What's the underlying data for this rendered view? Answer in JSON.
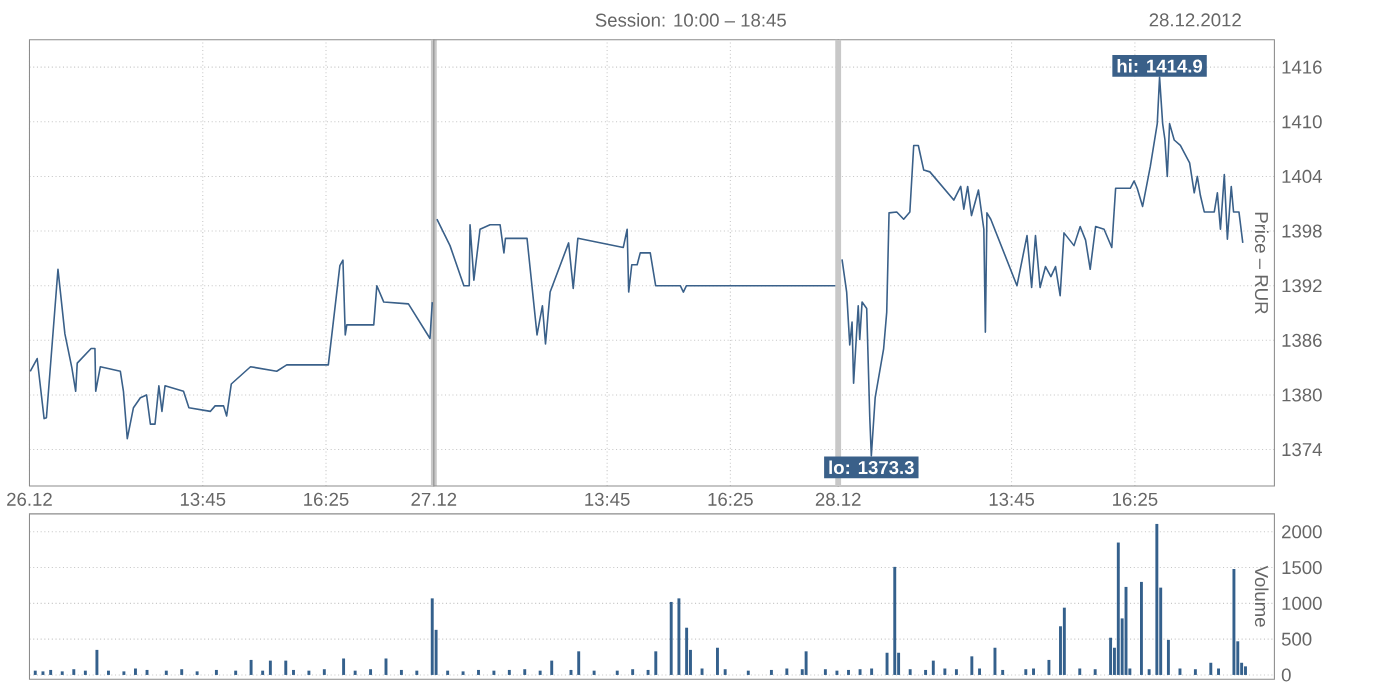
{
  "chart_data": [
    {
      "type": "line",
      "color": "#3a6089",
      "grid": true,
      "tick_labels": "x",
      "x": [
        "2012-12-26T10:01",
        "2012-12-26T10:10",
        "2012-12-26T10:19",
        "2012-12-26T10:22",
        "2012-12-26T10:37",
        "2012-12-26T10:46",
        "2012-12-26T10:55",
        "2012-12-26T11:00",
        "2012-12-26T11:02",
        "2012-12-26T11:20",
        "2012-12-26T11:25",
        "2012-12-26T11:26",
        "2012-12-26T11:32",
        "2012-12-26T11:58",
        "2012-12-26T12:02",
        "2012-12-26T12:07",
        "2012-12-26T12:15",
        "2012-12-26T12:24",
        "2012-12-26T12:32",
        "2012-12-26T12:37",
        "2012-12-26T12:43",
        "2012-12-26T12:48",
        "2012-12-26T12:52",
        "2012-12-26T12:56",
        "2012-12-26T13:20",
        "2012-12-26T13:27",
        "2012-12-26T13:55",
        "2012-12-26T14:01",
        "2012-12-26T14:12",
        "2012-12-26T14:16",
        "2012-12-26T14:22",
        "2012-12-26T14:47",
        "2012-12-26T15:21",
        "2012-12-26T15:34",
        "2012-12-26T16:28",
        "2012-12-26T16:43",
        "2012-12-26T16:47",
        "2012-12-26T16:50",
        "2012-12-26T16:52",
        "2012-12-26T17:27",
        "2012-12-26T17:31",
        "2012-12-26T17:40",
        "2012-12-26T18:12",
        "2012-12-26T18:40",
        "2012-12-26T18:43"
      ],
      "values": [
        1382.6,
        1384.0,
        1377.4,
        1377.5,
        1393.8,
        1386.7,
        1383.0,
        1380.4,
        1383.5,
        1385.1,
        1385.1,
        1380.4,
        1383.1,
        1382.6,
        1380.4,
        1375.2,
        1378.6,
        1379.7,
        1380.0,
        1376.8,
        1376.8,
        1381.0,
        1378.2,
        1381.0,
        1380.4,
        1378.6,
        1378.2,
        1378.8,
        1378.8,
        1377.7,
        1381.2,
        1383.1,
        1382.6,
        1383.3,
        1383.3,
        1394.2,
        1394.8,
        1386.6,
        1387.7,
        1387.7,
        1392.0,
        1390.2,
        1390.0,
        1386.2,
        1390.2
      ],
      "xlim": [
        "2012-12-26T10:00",
        "2012-12-26T18:45"
      ],
      "ylim": [
        1370,
        1419
      ],
      "yticks": [
        1374,
        1380,
        1386,
        1392,
        1398,
        1404,
        1410,
        1416
      ],
      "xticks": [
        {
          "value": "2012-12-26T10:00",
          "label": "26.12"
        },
        {
          "value": "2012-12-26T13:45",
          "label": "13:45"
        },
        {
          "value": "2012-12-26T16:25",
          "label": "16:25"
        }
      ],
      "ref_lines": [
        {
          "axis": "x",
          "value": "2012-12-26T18:45",
          "color": "#c8c8c8"
        }
      ]
    },
    {
      "type": "line",
      "title": "Session: 10:00 – 18:45",
      "color": "#3a6089",
      "grid": true,
      "tick_labels": "x",
      "x": [
        "2012-12-27T10:04",
        "2012-12-27T10:21",
        "2012-12-27T10:39",
        "2012-12-27T10:46",
        "2012-12-27T10:47",
        "2012-12-27T10:52",
        "2012-12-27T11:00",
        "2012-12-27T11:13",
        "2012-12-27T11:26",
        "2012-12-27T11:31",
        "2012-12-27T11:33",
        "2012-12-27T12:01",
        "2012-12-27T12:14",
        "2012-12-27T12:21",
        "2012-12-27T12:25",
        "2012-12-27T12:31",
        "2012-12-27T12:55",
        "2012-12-27T13:01",
        "2012-12-27T13:07",
        "2012-12-27T14:06",
        "2012-12-27T14:11",
        "2012-12-27T14:13",
        "2012-12-27T14:17",
        "2012-12-27T14:24",
        "2012-12-27T14:28",
        "2012-12-27T14:41",
        "2012-12-27T14:48",
        "2012-12-27T15:20",
        "2012-12-27T15:24",
        "2012-12-27T15:28",
        "2012-12-27T16:25",
        "2012-12-27T18:43"
      ],
      "values": [
        1399.3,
        1396.4,
        1392.0,
        1392.0,
        1398.7,
        1392.6,
        1398.2,
        1398.7,
        1398.7,
        1395.6,
        1397.2,
        1397.2,
        1386.6,
        1389.8,
        1385.6,
        1391.3,
        1396.7,
        1391.7,
        1397.2,
        1396.2,
        1398.2,
        1391.3,
        1394.3,
        1394.3,
        1395.6,
        1395.6,
        1392.0,
        1392.0,
        1391.3,
        1392.0,
        1392.0,
        1392.0
      ],
      "xlim": [
        "2012-12-27T10:00",
        "2012-12-27T18:45"
      ],
      "ylim": [
        1370,
        1419
      ],
      "yticks": [
        1374,
        1380,
        1386,
        1392,
        1398,
        1404,
        1410,
        1416
      ],
      "xticks": [
        {
          "value": "2012-12-27T10:00",
          "label": "27.12"
        },
        {
          "value": "2012-12-27T13:45",
          "label": "13:45"
        },
        {
          "value": "2012-12-27T16:25",
          "label": "16:25"
        }
      ]
    },
    {
      "type": "line",
      "subtitle": "28.12.2012",
      "ylabel": "Price – RUR",
      "color": "#3a6089",
      "grid": true,
      "x": [
        "2012-12-28T10:05",
        "2012-12-28T10:11",
        "2012-12-28T10:15",
        "2012-12-28T10:18",
        "2012-12-28T10:20",
        "2012-12-28T10:26",
        "2012-12-28T10:28",
        "2012-12-28T10:31",
        "2012-12-28T10:37",
        "2012-12-28T10:41",
        "2012-12-28T10:43",
        "2012-12-28T10:48",
        "2012-12-28T10:59",
        "2012-12-28T11:03",
        "2012-12-28T11:06",
        "2012-12-28T11:16",
        "2012-12-28T11:25",
        "2012-12-28T11:33",
        "2012-12-28T11:38",
        "2012-12-28T11:44",
        "2012-12-28T11:51",
        "2012-12-28T11:59",
        "2012-12-28T12:30",
        "2012-12-28T12:39",
        "2012-12-28T12:43",
        "2012-12-28T12:48",
        "2012-12-28T12:53",
        "2012-12-28T13:02",
        "2012-12-28T13:09",
        "2012-12-28T13:11",
        "2012-12-28T13:13",
        "2012-12-28T13:18",
        "2012-12-28T13:52",
        "2012-12-28T14:05",
        "2012-12-28T14:11",
        "2012-12-28T14:16",
        "2012-12-28T14:22",
        "2012-12-28T14:29",
        "2012-12-28T14:36",
        "2012-12-28T14:42",
        "2012-12-28T14:48",
        "2012-12-28T14:53",
        "2012-12-28T15:06",
        "2012-12-28T15:14",
        "2012-12-28T15:21",
        "2012-12-28T15:27",
        "2012-12-28T15:34",
        "2012-12-28T15:45",
        "2012-12-28T15:55",
        "2012-12-28T16:00",
        "2012-12-28T16:19",
        "2012-12-28T16:24",
        "2012-12-28T16:28",
        "2012-12-28T16:35",
        "2012-12-28T16:45",
        "2012-12-28T16:54",
        "2012-12-28T16:57",
        "2012-12-28T17:01",
        "2012-12-28T17:04",
        "2012-12-28T17:07",
        "2012-12-28T17:10",
        "2012-12-28T17:16",
        "2012-12-28T17:24",
        "2012-12-28T17:36",
        "2012-12-28T17:42",
        "2012-12-28T17:46",
        "2012-12-28T17:50",
        "2012-12-28T17:55",
        "2012-12-28T18:08",
        "2012-12-28T18:12",
        "2012-12-28T18:16",
        "2012-12-28T18:21",
        "2012-12-28T18:25",
        "2012-12-28T18:30",
        "2012-12-28T18:33",
        "2012-12-28T18:40",
        "2012-12-28T18:45"
      ],
      "values": [
        1394.9,
        1391.3,
        1385.5,
        1388.0,
        1381.3,
        1389.8,
        1386.1,
        1390.2,
        1389.5,
        1377.5,
        1373.3,
        1379.7,
        1385.1,
        1389.1,
        1400.0,
        1400.1,
        1399.3,
        1400.1,
        1407.4,
        1407.4,
        1404.7,
        1404.5,
        1401.4,
        1402.9,
        1400.4,
        1402.9,
        1399.7,
        1402.5,
        1398.2,
        1386.9,
        1400.0,
        1399.3,
        1392.0,
        1397.5,
        1391.8,
        1397.5,
        1391.8,
        1394.1,
        1393.0,
        1394.1,
        1390.9,
        1397.8,
        1396.4,
        1398.5,
        1397.0,
        1393.8,
        1398.5,
        1398.2,
        1396.2,
        1402.7,
        1402.7,
        1403.5,
        1402.7,
        1400.7,
        1405.1,
        1409.8,
        1414.9,
        1409.8,
        1408.0,
        1404.0,
        1409.8,
        1408.0,
        1407.4,
        1405.5,
        1402.2,
        1404.0,
        1401.9,
        1400.1,
        1400.1,
        1402.2,
        1398.2,
        1404.2,
        1397.1,
        1402.9,
        1400.1,
        1400.1,
        1396.7
      ],
      "xlim": [
        "2012-12-28T10:00",
        "2012-12-28T19:26"
      ],
      "ylim": [
        1370,
        1419
      ],
      "yticks": [
        1374,
        1380,
        1386,
        1392,
        1398,
        1404,
        1410,
        1416
      ],
      "xticks": [
        {
          "value": "2012-12-28T10:00",
          "label": "28.12"
        },
        {
          "value": "2012-12-28T13:45",
          "label": "13:45"
        },
        {
          "value": "2012-12-28T16:25",
          "label": "16:25"
        }
      ],
      "ref_lines": [
        {
          "axis": "x",
          "value": "2012-12-28T10:00",
          "color": "#c8c8c8"
        }
      ],
      "annotations": [
        {
          "text": "hi: 1414.9",
          "x": "2012-12-28T16:57",
          "y": 1414.9
        },
        {
          "text": "lo: 1373.3",
          "x": "2012-12-28T10:43",
          "y": 1373.3
        }
      ]
    },
    {
      "type": "bar",
      "ylabel": "Volume",
      "color": "#34608c",
      "grid": "y",
      "tick_labels": "y",
      "categories": [
        null,
        null,
        null,
        null,
        null,
        null,
        null,
        null,
        null,
        null,
        null,
        null,
        null,
        null,
        null,
        null,
        null,
        null,
        null,
        null,
        null,
        null,
        null,
        null,
        null,
        null,
        null,
        null,
        null,
        null,
        null,
        null,
        null,
        null,
        null,
        null,
        null,
        null,
        null,
        null,
        null,
        null,
        null,
        null,
        null,
        null,
        null,
        null,
        null,
        null,
        null,
        null,
        null,
        null,
        null,
        null,
        null,
        null,
        null,
        null,
        null,
        null,
        null,
        null,
        null,
        null,
        null,
        null,
        null,
        null,
        null,
        null,
        null,
        null,
        null,
        null,
        null,
        null,
        null,
        null,
        null,
        null,
        null,
        null,
        null,
        null,
        null,
        null,
        null,
        null,
        null,
        null,
        null,
        null,
        null,
        null,
        null,
        null,
        null,
        null,
        null,
        null,
        null,
        null,
        null,
        null,
        null,
        null,
        null,
        null,
        null,
        null,
        null,
        null,
        null,
        null,
        null,
        null,
        null,
        null,
        null,
        null,
        null,
        null,
        null,
        null,
        null,
        null,
        null,
        null,
        null,
        null,
        null,
        null,
        null,
        null,
        null,
        null,
        null,
        null,
        null,
        null,
        null,
        null,
        null,
        null,
        null,
        null,
        null,
        null,
        null,
        null,
        null,
        null,
        null,
        null,
        null,
        null,
        null,
        null,
        null,
        null,
        null,
        null,
        null,
        null,
        null,
        null,
        null,
        null,
        null,
        null,
        null,
        null,
        null,
        null,
        null,
        null,
        null,
        null,
        null,
        null,
        null,
        null,
        null,
        null,
        null,
        null,
        null,
        null,
        null,
        null,
        null,
        null,
        null,
        null,
        null,
        null,
        null,
        null,
        null,
        null,
        null,
        null,
        null,
        null,
        null,
        null,
        null,
        null,
        null,
        null,
        null,
        null,
        null,
        null,
        null,
        null,
        null,
        null,
        null,
        null,
        null,
        null,
        null,
        null,
        null,
        null,
        null,
        null,
        null,
        null,
        null,
        null,
        null,
        null,
        null,
        null,
        null,
        null,
        null,
        null,
        null,
        null,
        null,
        null,
        null,
        null,
        null,
        null,
        null,
        null,
        null,
        null,
        null,
        null,
        null,
        null,
        null,
        null,
        null,
        null,
        null,
        null,
        null,
        null,
        null,
        null,
        null,
        null,
        null,
        null,
        null,
        null,
        null,
        null,
        null,
        null,
        null,
        null,
        null,
        null,
        null,
        null,
        null,
        null,
        null,
        null,
        null,
        null,
        null,
        null,
        null,
        null,
        null,
        null,
        null,
        null,
        null,
        null,
        null,
        null,
        null,
        null,
        null,
        null,
        null,
        null,
        null,
        null,
        null,
        null,
        null,
        null,
        null,
        null,
        null,
        null,
        null,
        null,
        null,
        null,
        null
      ],
      "values": [
        null,
        60,
        null,
        50,
        null,
        70,
        null,
        null,
        50,
        null,
        null,
        80,
        null,
        null,
        60,
        null,
        null,
        350,
        null,
        null,
        60,
        null,
        null,
        null,
        50,
        null,
        null,
        90,
        null,
        null,
        70,
        null,
        null,
        null,
        null,
        60,
        null,
        null,
        null,
        80,
        null,
        null,
        null,
        50,
        null,
        null,
        null,
        null,
        70,
        null,
        null,
        null,
        null,
        60,
        null,
        null,
        null,
        210,
        null,
        null,
        60,
        null,
        200,
        null,
        null,
        null,
        200,
        null,
        70,
        null,
        null,
        null,
        60,
        null,
        null,
        null,
        80,
        null,
        null,
        null,
        null,
        230,
        null,
        null,
        60,
        null,
        null,
        null,
        80,
        null,
        null,
        null,
        230,
        null,
        null,
        null,
        70,
        null,
        null,
        null,
        60,
        null,
        null,
        null,
        1070,
        630,
        null,
        null,
        60,
        null,
        null,
        null,
        50,
        null,
        null,
        null,
        70,
        null,
        null,
        null,
        60,
        null,
        null,
        null,
        70,
        null,
        null,
        null,
        80,
        null,
        null,
        null,
        60,
        null,
        null,
        200,
        null,
        null,
        null,
        null,
        70,
        null,
        330,
        null,
        null,
        null,
        60,
        null,
        null,
        null,
        null,
        null,
        60,
        null,
        null,
        null,
        80,
        null,
        null,
        null,
        70,
        null,
        330,
        null,
        null,
        null,
        1020,
        null,
        1070,
        null,
        660,
        350,
        null,
        null,
        90,
        null,
        null,
        null,
        380,
        null,
        80,
        null,
        null,
        null,
        null,
        null,
        60,
        null,
        null,
        null,
        null,
        null,
        70,
        null,
        null,
        null,
        90,
        null,
        null,
        null,
        80,
        330,
        null,
        null,
        null,
        null,
        80,
        null,
        null,
        60,
        null,
        null,
        70,
        null,
        null,
        80,
        null,
        null,
        90,
        null,
        null,
        null,
        310,
        null,
        1510,
        310,
        null,
        null,
        80,
        null,
        null,
        null,
        70,
        null,
        200,
        null,
        null,
        90,
        null,
        null,
        80,
        null,
        null,
        null,
        260,
        null,
        90,
        null,
        null,
        null,
        380,
        null,
        70,
        null,
        null,
        null,
        null,
        null,
        80,
        null,
        90,
        null,
        null,
        null,
        210,
        null,
        null,
        680,
        940,
        null,
        null,
        null,
        90,
        null,
        null,
        null,
        80,
        null,
        null,
        null,
        520,
        380,
        1850,
        790,
        1230,
        90,
        null,
        null,
        1300,
        null,
        80,
        null,
        2110,
        1220,
        null,
        490,
        null,
        null,
        90,
        null,
        null,
        null,
        80,
        null,
        null,
        null,
        170,
        null,
        90,
        null,
        null,
        null,
        1480,
        470,
        170,
        120,
        null,
        null,
        null,
        null,
        null,
        null,
        null
      ],
      "ylim": [
        -60,
        2250
      ],
      "yticks": [
        0,
        500,
        1000,
        1500,
        2000
      ]
    }
  ]
}
